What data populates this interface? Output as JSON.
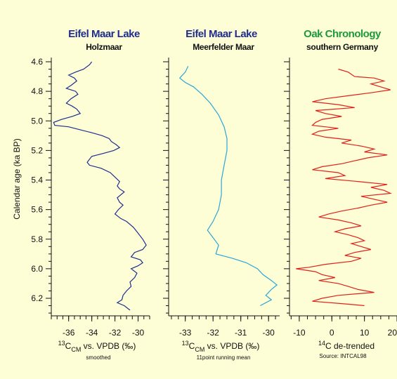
{
  "chart_data": [
    {
      "type": "line",
      "title": "Eifel Maar Lake",
      "subtitle": "Holzmaar",
      "title_color": "#1f2d8f",
      "line_color": "#1f2d8f",
      "ylabel": "Calendar age (ka BP)",
      "xlabel": "13CCM vs. VPDB (‰)",
      "xnote": "smoothed",
      "xlim": [
        -37.5,
        -29
      ],
      "ylim": [
        4.6,
        6.3
      ],
      "xticks": [
        "-36",
        "-34",
        "-32",
        "-30"
      ],
      "yticks": [
        "4.6",
        "4.8",
        "5.0",
        "5.2",
        "5.4",
        "5.6",
        "5.8",
        "6.0",
        "6.2"
      ],
      "series": [
        {
          "points": [
            [
              -34.0,
              4.6
            ],
            [
              -34.2,
              4.62
            ],
            [
              -34.7,
              4.65
            ],
            [
              -35.4,
              4.67
            ],
            [
              -36.0,
              4.69
            ],
            [
              -35.5,
              4.71
            ],
            [
              -35.3,
              4.73
            ],
            [
              -35.8,
              4.76
            ],
            [
              -36.2,
              4.78
            ],
            [
              -35.4,
              4.8
            ],
            [
              -35.2,
              4.82
            ],
            [
              -35.8,
              4.85
            ],
            [
              -36.2,
              4.88
            ],
            [
              -35.7,
              4.9
            ],
            [
              -35.3,
              4.92
            ],
            [
              -35.0,
              4.95
            ],
            [
              -35.7,
              4.97
            ],
            [
              -36.6,
              4.99
            ],
            [
              -37.3,
              5.01
            ],
            [
              -37.2,
              5.03
            ],
            [
              -36.0,
              5.04
            ],
            [
              -35.0,
              5.06
            ],
            [
              -34.0,
              5.08
            ],
            [
              -33.1,
              5.1
            ],
            [
              -32.5,
              5.12
            ],
            [
              -32.3,
              5.14
            ],
            [
              -31.9,
              5.16
            ],
            [
              -31.6,
              5.18
            ],
            [
              -32.1,
              5.2
            ],
            [
              -33.0,
              5.22
            ],
            [
              -34.0,
              5.24
            ],
            [
              -34.4,
              5.28
            ],
            [
              -34.2,
              5.3
            ],
            [
              -33.2,
              5.32
            ],
            [
              -32.4,
              5.35
            ],
            [
              -32.0,
              5.38
            ],
            [
              -31.6,
              5.41
            ],
            [
              -31.8,
              5.44
            ],
            [
              -31.6,
              5.46
            ],
            [
              -31.2,
              5.48
            ],
            [
              -31.8,
              5.52
            ],
            [
              -31.6,
              5.55
            ],
            [
              -31.3,
              5.57
            ],
            [
              -31.7,
              5.6
            ],
            [
              -32.0,
              5.63
            ],
            [
              -31.5,
              5.66
            ],
            [
              -31.0,
              5.68
            ],
            [
              -30.4,
              5.72
            ],
            [
              -30.0,
              5.76
            ],
            [
              -29.6,
              5.8
            ],
            [
              -29.3,
              5.84
            ],
            [
              -29.6,
              5.87
            ],
            [
              -30.3,
              5.89
            ],
            [
              -30.6,
              5.92
            ],
            [
              -29.8,
              5.94
            ],
            [
              -29.6,
              5.96
            ],
            [
              -30.0,
              5.98
            ],
            [
              -30.6,
              6.0
            ],
            [
              -30.1,
              6.03
            ],
            [
              -30.3,
              6.06
            ],
            [
              -30.7,
              6.09
            ],
            [
              -30.6,
              6.12
            ],
            [
              -31.0,
              6.15
            ],
            [
              -31.3,
              6.18
            ],
            [
              -31.4,
              6.21
            ],
            [
              -31.8,
              6.23
            ],
            [
              -31.2,
              6.25
            ],
            [
              -30.7,
              6.28
            ]
          ]
        }
      ]
    },
    {
      "type": "line",
      "title": "Eifel Maar Lake",
      "subtitle": "Meerfelder Maar",
      "title_color": "#1f2d8f",
      "line_color": "#2aa7d6",
      "xlabel": "13CCM vs. VPDB (‰)",
      "xnote": "11point running mean",
      "xlim": [
        -33.6,
        -29.6
      ],
      "ylim": [
        4.6,
        6.3
      ],
      "xticks": [
        "-33",
        "-32",
        "-31",
        "-30"
      ],
      "series": [
        {
          "points": [
            [
              -32.9,
              4.63
            ],
            [
              -33.0,
              4.67
            ],
            [
              -33.2,
              4.71
            ],
            [
              -33.0,
              4.74
            ],
            [
              -32.7,
              4.77
            ],
            [
              -32.4,
              4.82
            ],
            [
              -32.1,
              4.88
            ],
            [
              -31.8,
              4.96
            ],
            [
              -31.6,
              5.04
            ],
            [
              -31.5,
              5.12
            ],
            [
              -31.5,
              5.2
            ],
            [
              -31.6,
              5.3
            ],
            [
              -31.7,
              5.4
            ],
            [
              -31.7,
              5.5
            ],
            [
              -31.8,
              5.6
            ],
            [
              -32.0,
              5.68
            ],
            [
              -32.2,
              5.74
            ],
            [
              -32.0,
              5.79
            ],
            [
              -31.8,
              5.84
            ],
            [
              -31.9,
              5.9
            ],
            [
              -31.3,
              5.93
            ],
            [
              -30.8,
              5.96
            ],
            [
              -30.4,
              6.0
            ],
            [
              -30.2,
              6.04
            ],
            [
              -29.9,
              6.08
            ],
            [
              -29.7,
              6.11
            ],
            [
              -29.9,
              6.14
            ],
            [
              -30.1,
              6.18
            ],
            [
              -29.9,
              6.21
            ],
            [
              -30.3,
              6.25
            ]
          ]
        }
      ]
    },
    {
      "type": "line",
      "title": "Oak Chronology",
      "subtitle": "southern Germany",
      "title_color": "#1c9a3c",
      "line_color": "#e0201b",
      "xlabel": "14C de-trended",
      "xnote": "Source: INTCAL98",
      "xlim": [
        -13,
        20
      ],
      "ylim": [
        4.6,
        6.3
      ],
      "xticks": [
        "-10",
        "0",
        "10",
        "20"
      ],
      "series": [
        {
          "points": [
            [
              2,
              4.65
            ],
            [
              5,
              4.67
            ],
            [
              7,
              4.7
            ],
            [
              13,
              4.71
            ],
            [
              16,
              4.73
            ],
            [
              12,
              4.75
            ],
            [
              15,
              4.77
            ],
            [
              18,
              4.79
            ],
            [
              12,
              4.81
            ],
            [
              5,
              4.83
            ],
            [
              -2,
              4.85
            ],
            [
              -6,
              4.87
            ],
            [
              2,
              4.89
            ],
            [
              7,
              4.91
            ],
            [
              -5,
              4.93
            ],
            [
              -2,
              4.95
            ],
            [
              3,
              4.97
            ],
            [
              -3,
              4.99
            ],
            [
              -5,
              5.01
            ],
            [
              -6,
              5.03
            ],
            [
              2,
              5.05
            ],
            [
              -4,
              5.07
            ],
            [
              -6,
              5.09
            ],
            [
              -2,
              5.11
            ],
            [
              6,
              5.13
            ],
            [
              3,
              5.15
            ],
            [
              9,
              5.17
            ],
            [
              13,
              5.19
            ],
            [
              10,
              5.21
            ],
            [
              17,
              5.23
            ],
            [
              11,
              5.25
            ],
            [
              7,
              5.27
            ],
            [
              3,
              5.29
            ],
            [
              -3,
              5.31
            ],
            [
              -6,
              5.33
            ],
            [
              2,
              5.35
            ],
            [
              4,
              5.37
            ],
            [
              -2,
              5.39
            ],
            [
              8,
              5.41
            ],
            [
              17,
              5.43
            ],
            [
              12,
              5.45
            ],
            [
              16,
              5.47
            ],
            [
              18,
              5.49
            ],
            [
              9,
              5.51
            ],
            [
              13,
              5.53
            ],
            [
              17,
              5.55
            ],
            [
              12,
              5.57
            ],
            [
              8,
              5.59
            ],
            [
              3,
              5.61
            ],
            [
              -1,
              5.63
            ],
            [
              -4,
              5.65
            ],
            [
              2,
              5.67
            ],
            [
              6,
              5.69
            ],
            [
              9,
              5.71
            ],
            [
              4,
              5.73
            ],
            [
              1,
              5.75
            ],
            [
              5,
              5.77
            ],
            [
              8,
              5.79
            ],
            [
              10,
              5.81
            ],
            [
              6,
              5.83
            ],
            [
              9,
              5.85
            ],
            [
              12,
              5.87
            ],
            [
              7,
              5.89
            ],
            [
              4,
              5.91
            ],
            [
              9,
              5.93
            ],
            [
              6,
              5.95
            ],
            [
              -2,
              5.97
            ],
            [
              -7,
              5.99
            ],
            [
              -11,
              6.0
            ],
            [
              -5,
              6.02
            ],
            [
              -3,
              6.04
            ],
            [
              1,
              6.06
            ],
            [
              -4,
              6.08
            ],
            [
              2,
              6.1
            ],
            [
              5,
              6.12
            ],
            [
              8,
              6.14
            ],
            [
              13,
              6.16
            ],
            [
              2,
              6.18
            ],
            [
              -3,
              6.2
            ],
            [
              -6,
              6.22
            ],
            [
              5,
              6.24
            ],
            [
              10,
              6.25
            ]
          ]
        }
      ]
    }
  ]
}
